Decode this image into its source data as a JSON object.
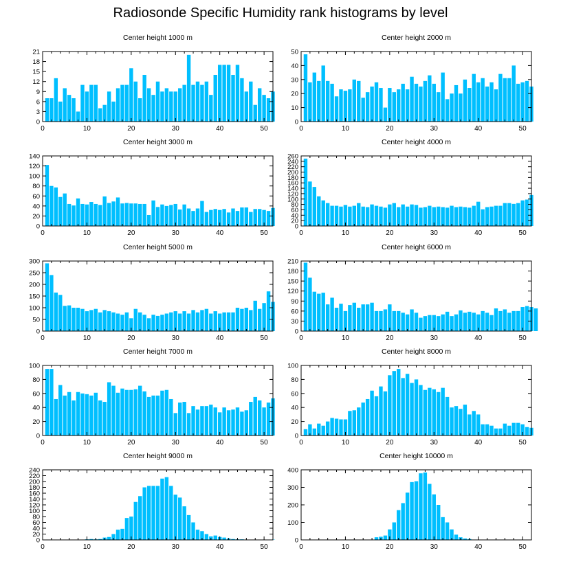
{
  "title": "Radiosonde Specific Humidity rank histograms by level",
  "colors": {
    "bar": "#00BFFF",
    "axis": "#000000",
    "background": "#FFFFFF"
  },
  "chart_data": [
    {
      "type": "bar",
      "title": "Center height 1000 m",
      "xlim": [
        0,
        52
      ],
      "ylim": [
        0,
        21
      ],
      "xticks": [
        0,
        10,
        20,
        30,
        40,
        50
      ],
      "yticks": [
        0,
        3,
        6,
        9,
        12,
        15,
        18,
        21
      ],
      "values": [
        7,
        7,
        13,
        6,
        10,
        8,
        7,
        3,
        11,
        9,
        11,
        11,
        4,
        5,
        9,
        6,
        10,
        11,
        11,
        16,
        12,
        7,
        14,
        10,
        8,
        12,
        9,
        10,
        9,
        9,
        10,
        11,
        20,
        11,
        12,
        11,
        12,
        8,
        14,
        17,
        17,
        17,
        14,
        17,
        13,
        9,
        12,
        5,
        10,
        8,
        7,
        9
      ]
    },
    {
      "type": "bar",
      "title": "Center height 2000 m",
      "xlim": [
        0,
        52
      ],
      "ylim": [
        0,
        50
      ],
      "xticks": [
        0,
        10,
        20,
        30,
        40,
        50
      ],
      "yticks": [
        0,
        10,
        20,
        30,
        40,
        50
      ],
      "values": [
        48,
        28,
        35,
        29,
        40,
        29,
        27,
        18,
        23,
        22,
        23,
        30,
        29,
        17,
        21,
        25,
        28,
        24,
        10,
        24,
        21,
        23,
        27,
        23,
        32,
        27,
        25,
        29,
        33,
        27,
        21,
        35,
        16,
        20,
        26,
        20,
        30,
        24,
        34,
        28,
        31,
        25,
        28,
        23,
        34,
        31,
        31,
        40,
        27,
        28,
        29,
        25
      ]
    },
    {
      "type": "bar",
      "title": "Center height 3000 m",
      "xlim": [
        0,
        52
      ],
      "ylim": [
        0,
        140
      ],
      "xticks": [
        0,
        10,
        20,
        30,
        40,
        50
      ],
      "yticks": [
        0,
        20,
        40,
        60,
        80,
        100,
        120,
        140
      ],
      "values": [
        122,
        80,
        77,
        58,
        65,
        44,
        41,
        55,
        44,
        43,
        48,
        44,
        42,
        59,
        46,
        49,
        57,
        45,
        46,
        45,
        45,
        44,
        44,
        22,
        51,
        38,
        43,
        40,
        42,
        44,
        33,
        43,
        35,
        30,
        35,
        50,
        28,
        32,
        34,
        32,
        34,
        27,
        35,
        30,
        37,
        37,
        28,
        34,
        34,
        32,
        30,
        36
      ]
    },
    {
      "type": "bar",
      "title": "Center height 4000 m",
      "xlim": [
        0,
        52
      ],
      "ylim": [
        0,
        260
      ],
      "xticks": [
        0,
        10,
        20,
        30,
        40,
        50
      ],
      "yticks": [
        0,
        20,
        40,
        60,
        80,
        100,
        120,
        140,
        160,
        180,
        200,
        220,
        240,
        260
      ],
      "values": [
        250,
        165,
        145,
        110,
        95,
        85,
        75,
        75,
        72,
        78,
        72,
        75,
        85,
        72,
        70,
        80,
        75,
        72,
        68,
        80,
        85,
        70,
        80,
        72,
        80,
        78,
        68,
        70,
        75,
        70,
        72,
        70,
        68,
        75,
        70,
        72,
        70,
        68,
        75,
        90,
        62,
        70,
        72,
        75,
        75,
        85,
        85,
        82,
        85,
        95,
        98,
        115
      ]
    },
    {
      "type": "bar",
      "title": "Center height 5000 m",
      "xlim": [
        0,
        52
      ],
      "ylim": [
        0,
        300
      ],
      "xticks": [
        0,
        10,
        20,
        30,
        40,
        50
      ],
      "yticks": [
        0,
        50,
        100,
        150,
        200,
        250,
        300
      ],
      "values": [
        290,
        240,
        165,
        155,
        108,
        110,
        100,
        100,
        95,
        85,
        90,
        95,
        80,
        90,
        85,
        80,
        75,
        70,
        80,
        55,
        95,
        80,
        70,
        55,
        70,
        65,
        70,
        75,
        80,
        85,
        75,
        85,
        75,
        90,
        80,
        90,
        95,
        75,
        85,
        75,
        80,
        80,
        80,
        100,
        95,
        100,
        90,
        130,
        95,
        120,
        170,
        125
      ]
    },
    {
      "type": "bar",
      "title": "Center height 6000 m",
      "xlim": [
        0,
        52
      ],
      "ylim": [
        0,
        210
      ],
      "xticks": [
        0,
        10,
        20,
        30,
        40,
        50
      ],
      "yticks": [
        0,
        30,
        60,
        90,
        120,
        150,
        180,
        210
      ],
      "values": [
        205,
        160,
        118,
        112,
        115,
        80,
        100,
        70,
        82,
        60,
        78,
        85,
        70,
        80,
        80,
        85,
        60,
        60,
        65,
        80,
        60,
        60,
        55,
        50,
        65,
        55,
        40,
        45,
        48,
        48,
        45,
        50,
        58,
        45,
        50,
        62,
        55,
        58,
        55,
        50,
        60,
        55,
        48,
        68,
        60,
        65,
        55,
        60,
        60,
        72,
        75,
        72,
        68
      ]
    },
    {
      "type": "bar",
      "title": "Center height 7000 m",
      "xlim": [
        0,
        52
      ],
      "ylim": [
        0,
        100
      ],
      "xticks": [
        0,
        10,
        20,
        30,
        40,
        50
      ],
      "yticks": [
        0,
        20,
        40,
        60,
        80,
        100
      ],
      "values": [
        95,
        95,
        52,
        72,
        57,
        62,
        50,
        62,
        60,
        59,
        57,
        61,
        50,
        48,
        76,
        71,
        61,
        67,
        65,
        65,
        66,
        71,
        63,
        55,
        57,
        57,
        64,
        65,
        52,
        32,
        47,
        48,
        32,
        42,
        37,
        42,
        42,
        44,
        40,
        33,
        40,
        36,
        37,
        40,
        34,
        36,
        48,
        55,
        50,
        40,
        47,
        53
      ]
    },
    {
      "type": "bar",
      "title": "Center height 8000 m",
      "xlim": [
        0,
        52
      ],
      "ylim": [
        0,
        100
      ],
      "xticks": [
        0,
        10,
        20,
        30,
        40,
        50
      ],
      "yticks": [
        0,
        20,
        40,
        60,
        80,
        100
      ],
      "values": [
        9,
        16,
        10,
        17,
        14,
        20,
        25,
        24,
        23,
        23,
        35,
        36,
        40,
        47,
        52,
        64,
        56,
        70,
        63,
        86,
        92,
        95,
        82,
        88,
        75,
        80,
        72,
        65,
        68,
        66,
        62,
        68,
        55,
        40,
        42,
        38,
        44,
        30,
        35,
        30,
        16,
        16,
        14,
        10,
        10,
        17,
        14,
        18,
        18,
        16,
        12,
        11
      ]
    },
    {
      "type": "bar",
      "title": "Center height 9000 m",
      "xlim": [
        0,
        52
      ],
      "ylim": [
        0,
        240
      ],
      "xticks": [
        0,
        10,
        20,
        30,
        40,
        50
      ],
      "yticks": [
        0,
        20,
        40,
        60,
        80,
        100,
        120,
        140,
        160,
        180,
        200,
        220,
        240
      ],
      "values": [
        1,
        1,
        1,
        1,
        1,
        1,
        1,
        1,
        1,
        2,
        3,
        2,
        3,
        8,
        10,
        20,
        35,
        38,
        75,
        80,
        130,
        150,
        180,
        185,
        185,
        185,
        210,
        215,
        185,
        155,
        145,
        115,
        85,
        60,
        35,
        30,
        20,
        12,
        15,
        10,
        8,
        5,
        3,
        2,
        2,
        1,
        1,
        1,
        1,
        1,
        1,
        1
      ]
    },
    {
      "type": "bar",
      "title": "Center height 10000 m",
      "xlim": [
        0,
        52
      ],
      "ylim": [
        0,
        400
      ],
      "xticks": [
        0,
        10,
        20,
        30,
        40,
        50
      ],
      "yticks": [
        0,
        100,
        200,
        300,
        400
      ],
      "values": [
        0,
        0,
        0,
        0,
        0,
        0,
        0,
        0,
        0,
        0,
        0,
        0,
        0,
        0,
        0,
        0,
        15,
        18,
        25,
        60,
        100,
        170,
        210,
        270,
        330,
        335,
        380,
        385,
        320,
        260,
        200,
        130,
        100,
        60,
        30,
        15,
        8,
        5,
        2,
        1,
        0,
        0,
        0,
        0,
        0,
        0,
        0,
        0,
        0,
        0,
        0,
        0
      ]
    }
  ]
}
